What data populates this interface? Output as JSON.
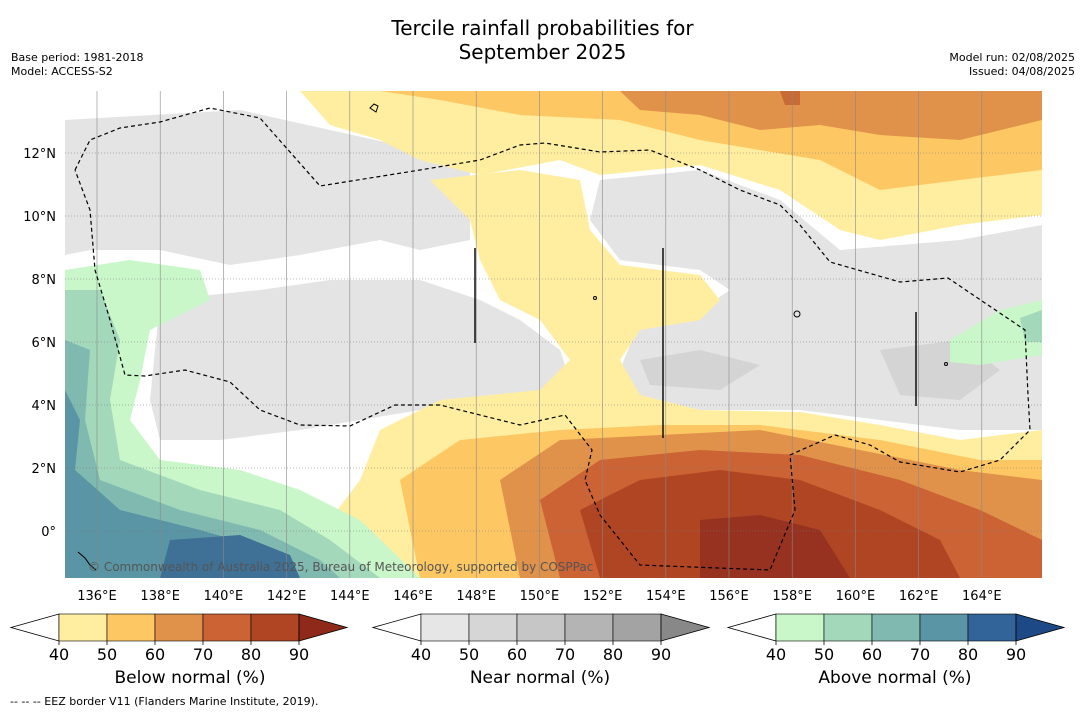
{
  "title": {
    "line1": "Tercile rainfall probabilities for",
    "line2": "September 2025"
  },
  "info_left": {
    "base_period": "Base period: 1981-2018",
    "model": "Model: ACCESS-S2"
  },
  "info_right": {
    "model_run": "Model run: 02/08/2025",
    "issued": "Issued: 04/08/2025"
  },
  "map": {
    "lon_ticks": [
      "136°E",
      "138°E",
      "140°E",
      "142°E",
      "144°E",
      "146°E",
      "148°E",
      "150°E",
      "152°E",
      "154°E",
      "156°E",
      "158°E",
      "160°E",
      "162°E",
      "164°E"
    ],
    "lat_ticks": [
      "12°N",
      "10°N",
      "8°N",
      "6°N",
      "4°N",
      "2°N",
      "0°"
    ],
    "copyright": "© Commonwealth of Australia 2025, Bureau of Meteorology, supported by COSPPac"
  },
  "colorbars": [
    {
      "title": "Below normal (%)",
      "ticks": [
        "40",
        "50",
        "60",
        "70",
        "80",
        "90"
      ],
      "colors": [
        "#ffffff",
        "#ffeea0",
        "#fdc863",
        "#e0924a",
        "#cb6334",
        "#b04524",
        "#8f2a1a"
      ]
    },
    {
      "title": "Near normal (%)",
      "ticks": [
        "40",
        "50",
        "60",
        "70",
        "80",
        "90"
      ],
      "colors": [
        "#ffffff",
        "#e6e6e6",
        "#d6d6d6",
        "#c6c6c6",
        "#b4b4b4",
        "#a3a3a3",
        "#888888"
      ]
    },
    {
      "title": "Above normal (%)",
      "ticks": [
        "40",
        "50",
        "60",
        "70",
        "80",
        "90"
      ],
      "colors": [
        "#ffffff",
        "#c9f7c9",
        "#a3d8bb",
        "#80b9b0",
        "#5a95a5",
        "#32649a",
        "#1d4a86"
      ]
    }
  ],
  "footnote": "--  --  -- EEZ border V11 (Flanders Marine Institute, 2019)."
}
